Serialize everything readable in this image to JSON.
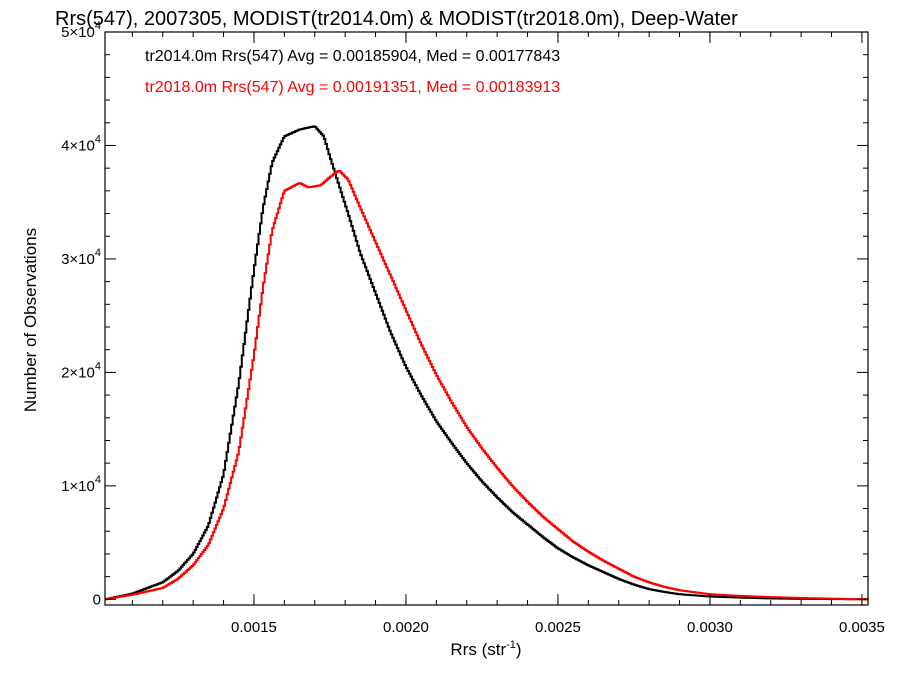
{
  "chart_data": {
    "type": "line",
    "step": true,
    "title": "Rrs(547), 2007305, MODIST(tr2014.0m) & MODIST(tr2018.0m), Deep-Water",
    "xlabel": "Rrs (str",
    "xlabel_sup": "-1",
    "xlabel_end": ")",
    "ylabel": "Number of Observations",
    "xlim": [
      0.00101,
      0.00352
    ],
    "ylim": [
      -500,
      50000
    ],
    "xticks": [
      {
        "value": 0.0015,
        "label": "0.0015"
      },
      {
        "value": 0.002,
        "label": "0.0020"
      },
      {
        "value": 0.0025,
        "label": "0.0025"
      },
      {
        "value": 0.003,
        "label": "0.0030"
      },
      {
        "value": 0.0035,
        "label": "0.0035"
      }
    ],
    "yticks": [
      {
        "value": 0,
        "mant": "0",
        "exp": ""
      },
      {
        "value": 10000,
        "mant": "1×10",
        "exp": "4"
      },
      {
        "value": 20000,
        "mant": "2×10",
        "exp": "4"
      },
      {
        "value": 30000,
        "mant": "3×10",
        "exp": "4"
      },
      {
        "value": 40000,
        "mant": "4×10",
        "exp": "4"
      },
      {
        "value": 50000,
        "mant": "5×10",
        "exp": "4"
      }
    ],
    "legend": [
      {
        "text": "tr2014.0m Rrs(547) Avg = 0.00185904, Med = 0.00177843",
        "color": "#000000"
      },
      {
        "text": "tr2018.0m Rrs(547) Avg = 0.00191351, Med = 0.00183913",
        "color": "#ff0000"
      }
    ],
    "series": [
      {
        "name": "tr2014.0m",
        "color": "#000000",
        "points": [
          [
            0.00101,
            0
          ],
          [
            0.0011,
            500
          ],
          [
            0.0012,
            1500
          ],
          [
            0.00125,
            2500
          ],
          [
            0.0013,
            4000
          ],
          [
            0.00135,
            6500
          ],
          [
            0.0014,
            11000
          ],
          [
            0.00145,
            19000
          ],
          [
            0.0015,
            29000
          ],
          [
            0.00153,
            34500
          ],
          [
            0.00156,
            38500
          ],
          [
            0.0016,
            40800
          ],
          [
            0.00165,
            41400
          ],
          [
            0.0017,
            41700
          ],
          [
            0.00173,
            40800
          ],
          [
            0.00175,
            39000
          ],
          [
            0.00178,
            36500
          ],
          [
            0.00181,
            34000
          ],
          [
            0.00185,
            30500
          ],
          [
            0.0019,
            27000
          ],
          [
            0.00195,
            23500
          ],
          [
            0.002,
            20500
          ],
          [
            0.00205,
            18000
          ],
          [
            0.0021,
            15700
          ],
          [
            0.00215,
            13800
          ],
          [
            0.0022,
            12000
          ],
          [
            0.00225,
            10400
          ],
          [
            0.0023,
            9000
          ],
          [
            0.00235,
            7700
          ],
          [
            0.0024,
            6600
          ],
          [
            0.00245,
            5500
          ],
          [
            0.0025,
            4500
          ],
          [
            0.00255,
            3700
          ],
          [
            0.0026,
            3000
          ],
          [
            0.00265,
            2400
          ],
          [
            0.0027,
            1800
          ],
          [
            0.00275,
            1300
          ],
          [
            0.0028,
            900
          ],
          [
            0.00285,
            650
          ],
          [
            0.0029,
            450
          ],
          [
            0.003,
            250
          ],
          [
            0.0031,
            150
          ],
          [
            0.0032,
            80
          ],
          [
            0.0033,
            40
          ],
          [
            0.0034,
            20
          ],
          [
            0.00352,
            0
          ]
        ]
      },
      {
        "name": "tr2018.0m",
        "color": "#ff0000",
        "points": [
          [
            0.00101,
            0
          ],
          [
            0.0011,
            400
          ],
          [
            0.0012,
            1000
          ],
          [
            0.00125,
            1800
          ],
          [
            0.0013,
            3000
          ],
          [
            0.00135,
            4800
          ],
          [
            0.0014,
            8000
          ],
          [
            0.00145,
            13000
          ],
          [
            0.0015,
            21500
          ],
          [
            0.00153,
            27500
          ],
          [
            0.00156,
            32500
          ],
          [
            0.0016,
            36000
          ],
          [
            0.00165,
            36700
          ],
          [
            0.00168,
            36300
          ],
          [
            0.00172,
            36500
          ],
          [
            0.00175,
            37200
          ],
          [
            0.00178,
            37800
          ],
          [
            0.00181,
            37000
          ],
          [
            0.00185,
            34500
          ],
          [
            0.0019,
            31500
          ],
          [
            0.00195,
            28500
          ],
          [
            0.002,
            25500
          ],
          [
            0.00205,
            22500
          ],
          [
            0.0021,
            19800
          ],
          [
            0.00215,
            17400
          ],
          [
            0.0022,
            15200
          ],
          [
            0.00225,
            13300
          ],
          [
            0.0023,
            11600
          ],
          [
            0.00235,
            10000
          ],
          [
            0.0024,
            8600
          ],
          [
            0.00245,
            7300
          ],
          [
            0.0025,
            6200
          ],
          [
            0.00255,
            5100
          ],
          [
            0.0026,
            4200
          ],
          [
            0.00265,
            3400
          ],
          [
            0.0027,
            2700
          ],
          [
            0.00275,
            2000
          ],
          [
            0.0028,
            1500
          ],
          [
            0.00285,
            1100
          ],
          [
            0.0029,
            800
          ],
          [
            0.003,
            450
          ],
          [
            0.0031,
            300
          ],
          [
            0.0032,
            200
          ],
          [
            0.0033,
            120
          ],
          [
            0.0034,
            60
          ],
          [
            0.00352,
            0
          ]
        ]
      }
    ]
  }
}
